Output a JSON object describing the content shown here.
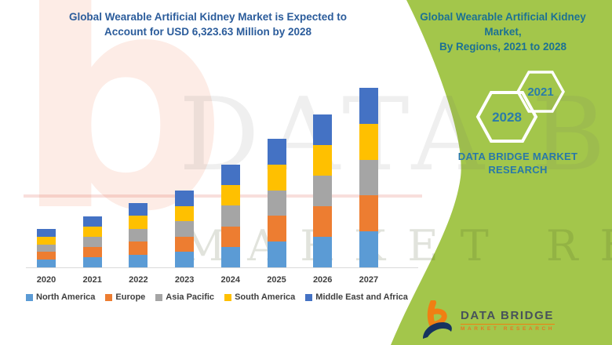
{
  "header": {
    "left_title_line1": "Global Wearable Artificial Kidney Market is Expected to",
    "left_title_line2": "Account for USD 6,323.63 Million by 2028",
    "right_title_line1": "Global Wearable Artificial Kidney",
    "right_title_line2": "Market,",
    "right_title_line3": "By Regions, 2021 to 2028"
  },
  "badges": {
    "end_year": "2028",
    "start_year": "2021"
  },
  "brand": {
    "panel_text_line1": "DATA BRIDGE MARKET",
    "panel_text_line2": "RESEARCH",
    "logo_title": "DATA BRIDGE",
    "logo_subtitle": "MARKET RESEARCH"
  },
  "watermark": {
    "glyph": "b",
    "row1": "DATA BRIDGE",
    "row2": "MARKET RESEARCH"
  },
  "colors": {
    "green_panel": "#a3c64b",
    "left_title": "#2b5c9b",
    "right_title": "#1c7193",
    "badge_text": "#2b7ca8",
    "panel_text": "#2878a8",
    "axis_label": "#3f3f3f",
    "axis_line": "#d9d9d9",
    "logo_orange": "#f07f13",
    "logo_navy": "#16335f"
  },
  "chart_data": {
    "type": "bar",
    "stacked": true,
    "title": "",
    "xlabel": "",
    "ylabel": "",
    "categories": [
      "2020",
      "2021",
      "2022",
      "2023",
      "2024",
      "2025",
      "2026",
      "2027"
    ],
    "series": [
      {
        "name": "North America",
        "color": "#5b9bd5",
        "values": [
          9.8,
          13,
          16.4,
          19.6,
          26.2,
          32.8,
          39,
          45.8
        ]
      },
      {
        "name": "Europe",
        "color": "#ed7d31",
        "values": [
          9.8,
          13,
          16.4,
          19.6,
          26.2,
          32.8,
          39,
          45.8
        ]
      },
      {
        "name": "Asia Pacific",
        "color": "#a5a5a5",
        "values": [
          9.8,
          13,
          16.4,
          19.6,
          26.2,
          32.8,
          39,
          45.8
        ]
      },
      {
        "name": "South America",
        "color": "#ffc000",
        "values": [
          9.8,
          13,
          16.4,
          19.6,
          26.2,
          32.8,
          39,
          45.8
        ]
      },
      {
        "name": "Middle East and Africa",
        "color": "#4472c4",
        "values": [
          9.8,
          13,
          16.4,
          19.6,
          26.2,
          32.8,
          39,
          45.8
        ]
      }
    ],
    "stack_totals": [
      49,
      65,
      82,
      98,
      131,
      164,
      195,
      229
    ],
    "value_units": "relative height (no y-axis shown in figure)",
    "y_axis_visible": false,
    "gridlines": false,
    "legend_position": "bottom"
  }
}
